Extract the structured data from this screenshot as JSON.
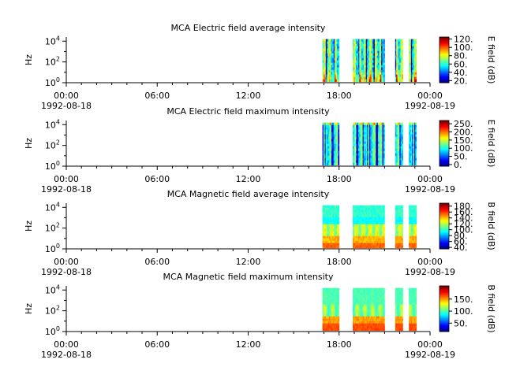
{
  "chart_data": [
    {
      "type": "heatmap",
      "title": "MCA  Electric field average intensity",
      "ylabel": "Hz",
      "y_scale": "log",
      "y_ticks": [
        {
          "base": "10",
          "exp": "0"
        },
        {
          "base": "10",
          "exp": "2"
        },
        {
          "base": "10",
          "exp": "4"
        }
      ],
      "x_ticks": [
        {
          "time": "00:00",
          "date": "1992-08-18"
        },
        {
          "time": "06:00",
          "date": ""
        },
        {
          "time": "12:00",
          "date": ""
        },
        {
          "time": "18:00",
          "date": ""
        },
        {
          "time": "00:00",
          "date": "1992-08-19"
        }
      ],
      "x_range_hours": [
        0,
        24
      ],
      "data_intervals_hours": [
        [
          16.9,
          18.0
        ],
        [
          18.9,
          21.0
        ],
        [
          21.7,
          22.2
        ],
        [
          22.6,
          23.1
        ]
      ],
      "colorbar": {
        "label": "E field (dB)",
        "range": [
          15,
          125
        ],
        "ticks": [
          "20.",
          "40.",
          "60.",
          "80.",
          "100.",
          "120."
        ]
      },
      "profile": "e-avg"
    },
    {
      "type": "heatmap",
      "title": "MCA  Electric field maximum intensity",
      "ylabel": "Hz",
      "y_scale": "log",
      "y_ticks": [
        {
          "base": "10",
          "exp": "0"
        },
        {
          "base": "10",
          "exp": "2"
        },
        {
          "base": "10",
          "exp": "4"
        }
      ],
      "x_ticks": [
        {
          "time": "00:00",
          "date": "1992-08-18"
        },
        {
          "time": "06:00",
          "date": ""
        },
        {
          "time": "12:00",
          "date": ""
        },
        {
          "time": "18:00",
          "date": ""
        },
        {
          "time": "00:00",
          "date": "1992-08-19"
        }
      ],
      "x_range_hours": [
        0,
        24
      ],
      "data_intervals_hours": [
        [
          16.9,
          18.0
        ],
        [
          18.9,
          21.0
        ],
        [
          21.7,
          22.2
        ],
        [
          22.6,
          23.1
        ]
      ],
      "colorbar": {
        "label": "E field (dB)",
        "range": [
          -10,
          270
        ],
        "ticks": [
          "0.",
          "50.",
          "100.",
          "150.",
          "200.",
          "250."
        ]
      },
      "profile": "e-max"
    },
    {
      "type": "heatmap",
      "title": "MCA  Magnetic field average intensity",
      "ylabel": "Hz",
      "y_scale": "log",
      "y_ticks": [
        {
          "base": "10",
          "exp": "0"
        },
        {
          "base": "10",
          "exp": "2"
        },
        {
          "base": "10",
          "exp": "4"
        }
      ],
      "x_ticks": [
        {
          "time": "00:00",
          "date": "1992-08-18"
        },
        {
          "time": "06:00",
          "date": ""
        },
        {
          "time": "12:00",
          "date": ""
        },
        {
          "time": "18:00",
          "date": ""
        },
        {
          "time": "00:00",
          "date": "1992-08-19"
        }
      ],
      "x_range_hours": [
        0,
        24
      ],
      "data_intervals_hours": [
        [
          16.9,
          18.0
        ],
        [
          18.9,
          21.0
        ],
        [
          21.7,
          22.2
        ],
        [
          22.6,
          23.1
        ]
      ],
      "colorbar": {
        "label": "B field (dB)",
        "range": [
          35,
          190
        ],
        "ticks": [
          "40.",
          "60.",
          "80.",
          "100.",
          "120.",
          "140.",
          "160.",
          "180."
        ]
      },
      "profile": "b-avg"
    },
    {
      "type": "heatmap",
      "title": "MCA  Magnetic field maximum intensity",
      "ylabel": "Hz",
      "y_scale": "log",
      "y_ticks": [
        {
          "base": "10",
          "exp": "0"
        },
        {
          "base": "10",
          "exp": "2"
        },
        {
          "base": "10",
          "exp": "4"
        }
      ],
      "x_ticks": [
        {
          "time": "00:00",
          "date": "1992-08-18"
        },
        {
          "time": "06:00",
          "date": ""
        },
        {
          "time": "12:00",
          "date": ""
        },
        {
          "time": "18:00",
          "date": ""
        },
        {
          "time": "00:00",
          "date": "1992-08-19"
        }
      ],
      "x_range_hours": [
        0,
        24
      ],
      "data_intervals_hours": [
        [
          16.9,
          18.0
        ],
        [
          18.9,
          21.0
        ],
        [
          21.7,
          22.2
        ],
        [
          22.6,
          23.1
        ]
      ],
      "colorbar": {
        "label": "B field (dB)",
        "range": [
          15,
          205
        ],
        "ticks": [
          "50.",
          "100.",
          "150."
        ]
      },
      "profile": "b-max"
    }
  ]
}
